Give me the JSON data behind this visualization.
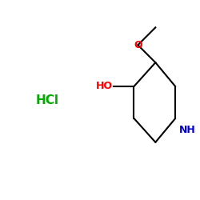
{
  "background_color": "#ffffff",
  "bond_color": "#000000",
  "atom_colors": {
    "O": "#ff0000",
    "N": "#0000cd",
    "HCl": "#00aa00",
    "HO": "#ff0000"
  },
  "figsize": [
    2.5,
    2.5
  ],
  "dpi": 100,
  "lw": 1.5
}
